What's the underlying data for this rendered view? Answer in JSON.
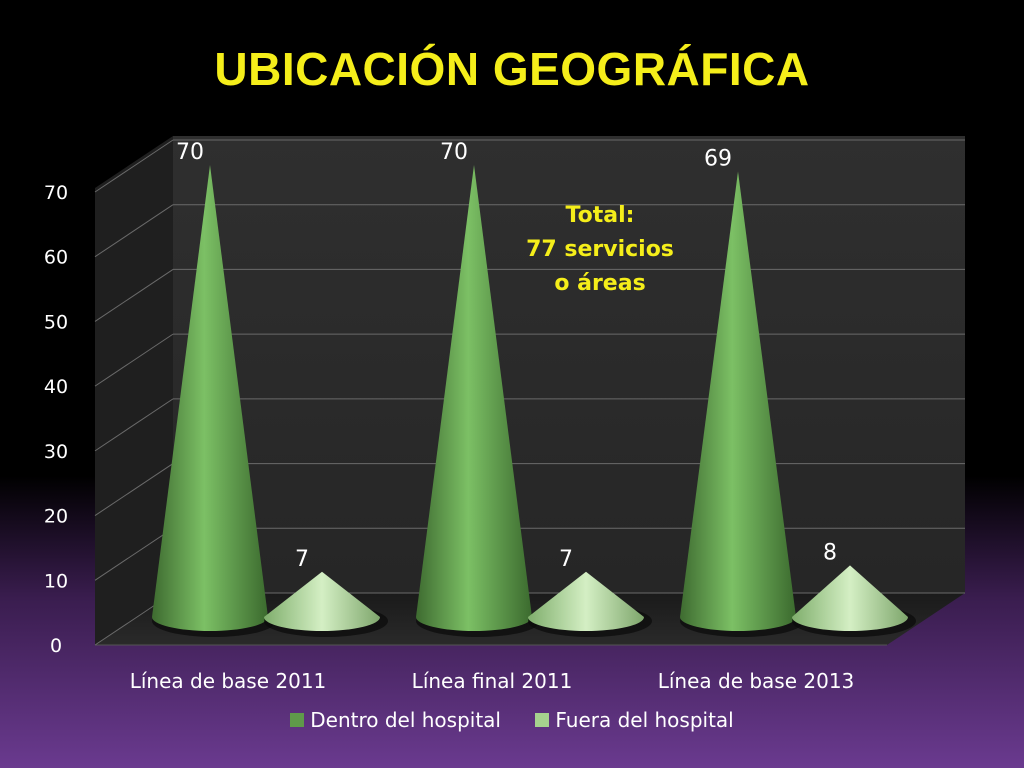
{
  "title": "UBICACIÓN GEOGRÁFICA",
  "chart_data": {
    "type": "bar",
    "categories": [
      "Línea de base 2011",
      "Línea final 2011",
      "Línea de base 2013"
    ],
    "series": [
      {
        "name": "Dentro del hospital",
        "values": [
          70,
          70,
          69
        ],
        "color": "#5f9a4a"
      },
      {
        "name": "Fuera del hospital",
        "values": [
          7,
          7,
          8
        ],
        "color": "#a6d28e"
      }
    ],
    "ylim": [
      0,
      70
    ],
    "yticks": [
      "0",
      "10",
      "20",
      "30",
      "40",
      "50",
      "60",
      "70"
    ],
    "ytick_values": [
      0,
      10,
      20,
      30,
      40,
      50,
      60,
      70
    ],
    "grid": true,
    "legend": "bottom",
    "annotation": [
      "Total:",
      "77 servicios",
      "o áreas"
    ]
  }
}
